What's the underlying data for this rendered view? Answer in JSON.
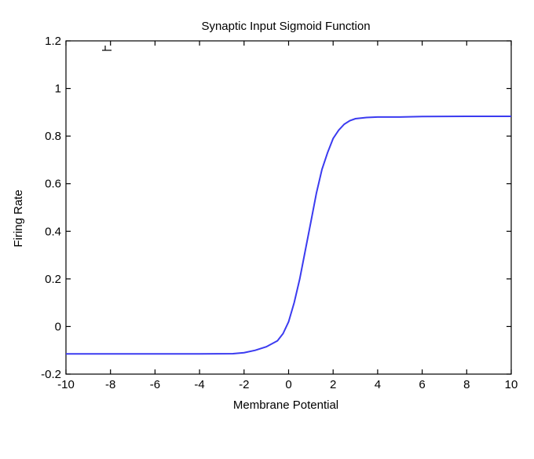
{
  "chart_data": {
    "type": "line",
    "title": "Synaptic Input Sigmoid Function",
    "xlabel": "Membrane Potential",
    "ylabel": "Firing Rate",
    "xlim": [
      -10,
      10
    ],
    "ylim": [
      -0.2,
      1.2
    ],
    "xticks": [
      -10,
      -8,
      -6,
      -4,
      -2,
      0,
      2,
      4,
      6,
      8,
      10
    ],
    "yticks": [
      -0.2,
      0,
      0.2,
      0.4,
      0.6,
      0.8,
      1,
      1.2
    ],
    "ytick_labels": [
      "-0.2",
      "0",
      "0.2",
      "0.4",
      "0.6",
      "0.8",
      "1",
      "1.2"
    ],
    "grid": false,
    "series": [
      {
        "color": "#3b3bf0",
        "x": [
          -10,
          -8,
          -6,
          -4,
          -2.5,
          -2,
          -1.5,
          -1,
          -0.5,
          -0.25,
          0,
          0.25,
          0.5,
          0.75,
          1,
          1.25,
          1.5,
          1.75,
          2,
          2.25,
          2.5,
          2.75,
          3,
          3.5,
          4,
          5,
          6,
          8,
          10
        ],
        "y": [
          -0.115,
          -0.115,
          -0.115,
          -0.115,
          -0.114,
          -0.11,
          -0.1,
          -0.085,
          -0.06,
          -0.03,
          0.02,
          0.1,
          0.2,
          0.32,
          0.44,
          0.56,
          0.66,
          0.73,
          0.79,
          0.825,
          0.85,
          0.865,
          0.873,
          0.878,
          0.88,
          0.88,
          0.882,
          0.883,
          0.883
        ]
      }
    ]
  }
}
